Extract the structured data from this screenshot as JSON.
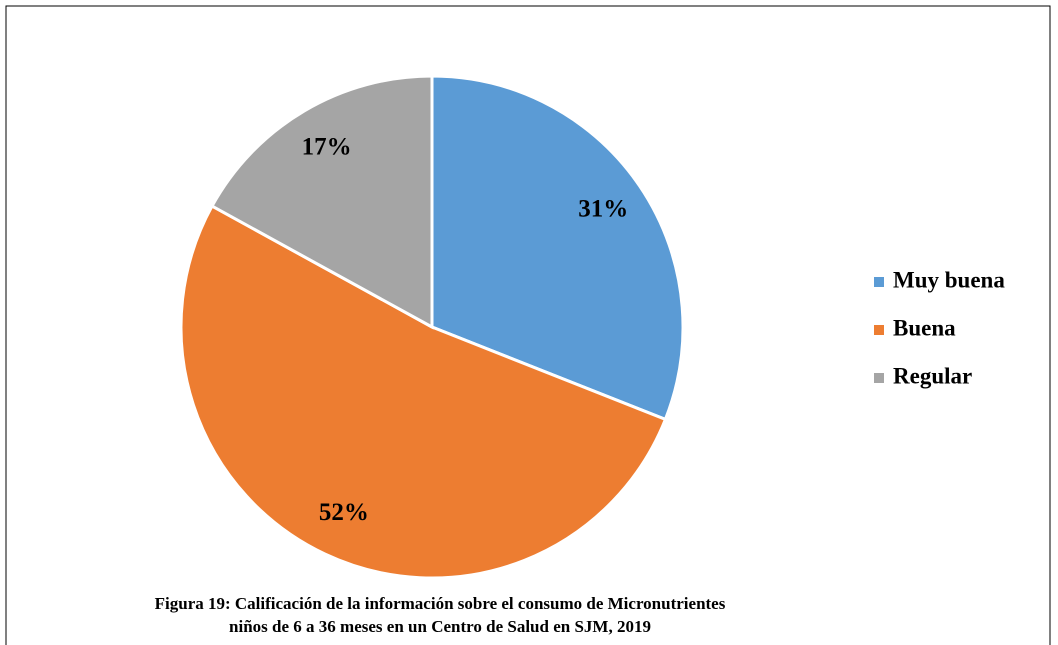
{
  "chart_data": {
    "type": "pie",
    "categories": [
      "Muy buena",
      "Buena",
      "Regular"
    ],
    "values": [
      31,
      52,
      17
    ],
    "value_labels": [
      "31%",
      "52%",
      "17%"
    ],
    "colors": [
      "#5b9bd5",
      "#ed7d31",
      "#a5a5a5"
    ],
    "legend": "right",
    "caption": [
      "Figura 19: Calificación de la información sobre el consumo de Micronutrientes",
      "niños de 6 a 36 meses en un Centro de Salud en SJM, 2019"
    ]
  }
}
